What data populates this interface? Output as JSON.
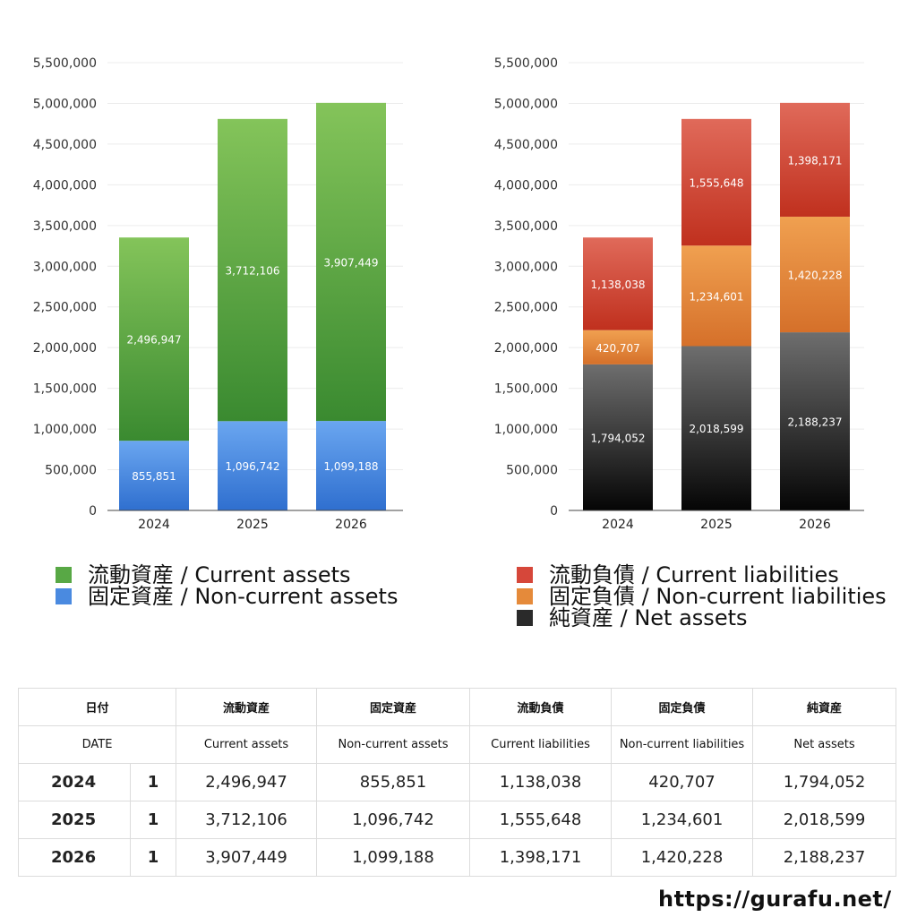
{
  "chart_data": [
    {
      "type": "bar",
      "stacked": true,
      "categories": [
        "2024",
        "2025",
        "2026"
      ],
      "ylim": [
        0,
        5500000
      ],
      "yticks": [
        "0",
        "500,000",
        "1,000,000",
        "1,500,000",
        "2,000,000",
        "2,500,000",
        "3,000,000",
        "3,500,000",
        "4,000,000",
        "4,500,000",
        "5,000,000",
        "5,500,000"
      ],
      "grid": true,
      "series": [
        {
          "name": "固定資産 / Non-current assets",
          "values": [
            855851,
            1096742,
            1099188
          ],
          "labels": [
            "855,851",
            "1,096,742",
            "1,099,188"
          ],
          "color_top": "#6aa6f0",
          "color_bottom": "#2f6fcf"
        },
        {
          "name": "流動資産 / Current assets",
          "values": [
            2496947,
            3712106,
            3907449
          ],
          "labels": [
            "2,496,947",
            "3,712,106",
            "3,907,449"
          ],
          "color_top": "#84c45a",
          "color_bottom": "#3a8a30"
        }
      ]
    },
    {
      "type": "bar",
      "stacked": true,
      "categories": [
        "2024",
        "2025",
        "2026"
      ],
      "ylim": [
        0,
        5500000
      ],
      "yticks": [
        "0",
        "500,000",
        "1,000,000",
        "1,500,000",
        "2,000,000",
        "2,500,000",
        "3,000,000",
        "3,500,000",
        "4,000,000",
        "4,500,000",
        "5,000,000",
        "5,500,000"
      ],
      "grid": true,
      "series": [
        {
          "name": "純資産 / Net assets",
          "values": [
            1794052,
            2018599,
            2188237
          ],
          "labels": [
            "1,794,052",
            "2,018,599",
            "2,188,237"
          ],
          "color_top": "#6e6e6e",
          "color_bottom": "#050505"
        },
        {
          "name": "固定負債 / Non-current liabilities",
          "values": [
            420707,
            1234601,
            1420228
          ],
          "labels": [
            "420,707",
            "1,234,601",
            "1,420,228"
          ],
          "color_top": "#f0a050",
          "color_bottom": "#d5702a"
        },
        {
          "name": "流動負債 / Current liabilities",
          "values": [
            1138038,
            1555648,
            1398171
          ],
          "labels": [
            "1,138,038",
            "1,555,648",
            "1,398,171"
          ],
          "color_top": "#e06a5a",
          "color_bottom": "#c0301e"
        }
      ]
    }
  ],
  "legend_left": [
    {
      "label": "流動資産 / Current assets",
      "color": "#58a845"
    },
    {
      "label": "固定資産 / Non-current assets",
      "color": "#4a8ae0"
    }
  ],
  "legend_right": [
    {
      "label": "流動負債 / Current liabilities",
      "color": "#d6473a"
    },
    {
      "label": "固定負債 / Non-current liabilities",
      "color": "#e58a3a"
    },
    {
      "label": "純資産 / Net assets",
      "color": "#2a2a2a"
    }
  ],
  "table": {
    "header_jp": {
      "date": "日付",
      "c1": "流動資産",
      "c2": "固定資産",
      "c3": "流動負債",
      "c4": "固定負債",
      "c5": "純資産"
    },
    "header_en": {
      "date": "DATE",
      "c1": "Current assets",
      "c2": "Non-current assets",
      "c3": "Current liabilities",
      "c4": "Non-current liabilities",
      "c5": "Net assets"
    },
    "rows": [
      {
        "year": "2024",
        "n": "1",
        "c1": "2,496,947",
        "c2": "855,851",
        "c3": "1,138,038",
        "c4": "420,707",
        "c5": "1,794,052"
      },
      {
        "year": "2025",
        "n": "1",
        "c1": "3,712,106",
        "c2": "1,096,742",
        "c3": "1,555,648",
        "c4": "1,234,601",
        "c5": "2,018,599"
      },
      {
        "year": "2026",
        "n": "1",
        "c1": "3,907,449",
        "c2": "1,099,188",
        "c3": "1,398,171",
        "c4": "1,420,228",
        "c5": "2,188,237"
      }
    ]
  },
  "site_url": "https://gurafu.net/"
}
